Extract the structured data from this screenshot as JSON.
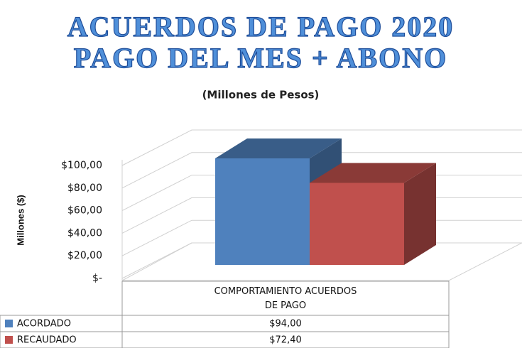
{
  "chart_data": {
    "type": "bar3d",
    "title": [
      "ACUERDOS DE PAGO 2020",
      "PAGO DEL MES + ABONO"
    ],
    "subtitle": "(Millones de Pesos)",
    "y_label": "Millones ($)",
    "categories": [
      "COMPORTAMIENTO ACUERDOS DE PAGO"
    ],
    "series": [
      {
        "name": "ACORDADO",
        "color": "#4f81bd",
        "values": [
          94
        ],
        "value_labels": [
          "$94,00"
        ]
      },
      {
        "name": "RECAUDADO",
        "color": "#c0504d",
        "values": [
          72.4
        ],
        "value_labels": [
          "$72,40"
        ]
      }
    ],
    "ylim": [
      0,
      100
    ],
    "yticks": [
      {
        "value": 0,
        "label": "$-"
      },
      {
        "value": 20,
        "label": "$20,00"
      },
      {
        "value": 40,
        "label": "$40,00"
      },
      {
        "value": 60,
        "label": "$60,00"
      },
      {
        "value": 80,
        "label": "$80,00"
      },
      {
        "value": 100,
        "label": "$100,00"
      }
    ],
    "grid": true,
    "data_table": true
  }
}
